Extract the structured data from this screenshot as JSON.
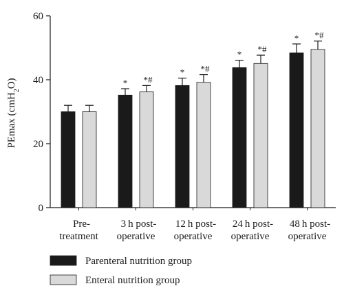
{
  "chart_data": {
    "type": "bar",
    "ylabel": "PEmax (cmH",
    "ylabel_sub": "2",
    "ylabel_end": "O)",
    "ylim": [
      0,
      60
    ],
    "yticks": [
      "0",
      "20",
      "40",
      "60"
    ],
    "categories": [
      [
        "Pre-",
        "treatment"
      ],
      [
        "3 h post-",
        "operative"
      ],
      [
        "12 h post-",
        "operative"
      ],
      [
        "24 h post-",
        "operative"
      ],
      [
        "48 h post-",
        "operative"
      ]
    ],
    "series": [
      {
        "name": "Parenteral nutrition group",
        "color": "#1a1a1a",
        "values": [
          30,
          35.2,
          38.2,
          43.8,
          48.4
        ],
        "errors": [
          2.0,
          2.0,
          2.3,
          2.3,
          2.8
        ],
        "annotations": [
          "",
          "*",
          "*",
          "*",
          "*"
        ]
      },
      {
        "name": "Enteral nutrition group",
        "color": "#d9d9d9",
        "values": [
          30,
          36.2,
          39.2,
          45.1,
          49.5
        ],
        "errors": [
          2.0,
          2.0,
          2.4,
          2.6,
          2.6
        ],
        "annotations": [
          "",
          "*#",
          "*#",
          "*#",
          "*#"
        ]
      }
    ],
    "legend": "bottom-left"
  }
}
